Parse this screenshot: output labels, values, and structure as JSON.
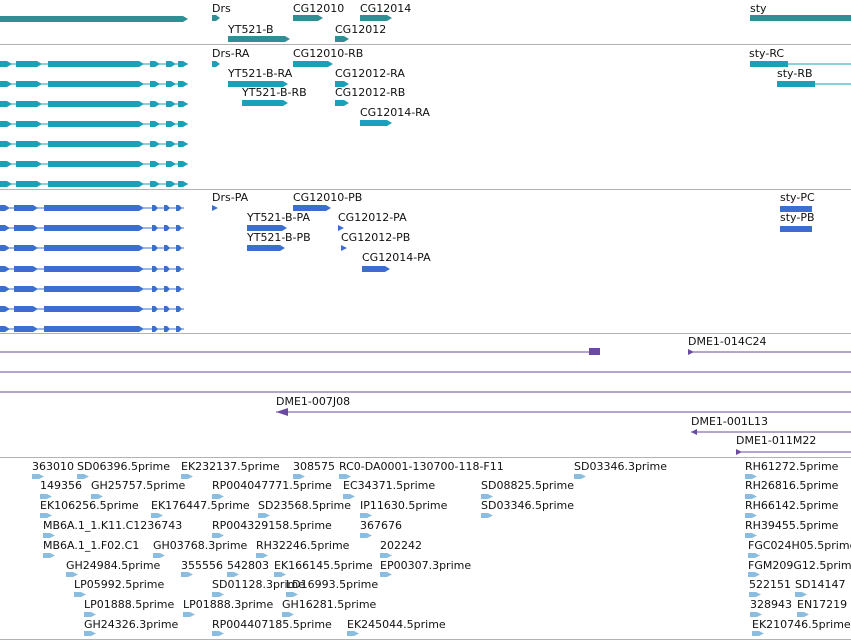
{
  "colors": {
    "gene": "#2f8f95",
    "transcript": "#1aa1b8",
    "protein": "#3a6fcf",
    "clone": "#6a4aa0",
    "est": "#8bbde0"
  },
  "gene_track": {
    "labels": [
      "Drs",
      "YT521-B",
      "CG12010",
      "CG12012",
      "CG12014",
      "sty"
    ]
  },
  "transcript_track": {
    "labels": [
      "Drs-RA",
      "CG12010-RB",
      "YT521-B-RA",
      "CG12012-RA",
      "YT521-B-RB",
      "CG12012-RB",
      "CG12014-RA",
      "sty-RC",
      "sty-RB"
    ]
  },
  "protein_track": {
    "labels": [
      "Drs-PA",
      "CG12010-PB",
      "YT521-B-PA",
      "CG12012-PA",
      "YT521-B-PB",
      "CG12012-PB",
      "CG12014-PA",
      "sty-PC",
      "sty-PB"
    ]
  },
  "clone_track": {
    "labels": [
      "DME1-014C24",
      "DME1-007J08",
      "DME1-001L13",
      "DME1-011M22"
    ]
  },
  "est_track": {
    "labels": [
      "363010",
      "SD06396.5prime",
      "EK232137.5prime",
      "308575",
      "RC0-DA0001-130700-118-F11",
      "SD03346.3prime",
      "RH61272.5prime",
      "149356",
      "GH25757.5prime",
      "RP004047771.5prime",
      "EC34371.5prime",
      "SD08825.5prime",
      "RH26816.5prime",
      "EK106256.5prime",
      "EK176447.5prime",
      "SD23568.5prime",
      "IP11630.5prime",
      "SD03346.5prime",
      "RH66142.5prime",
      "MB6A.1_1.K11.C1236743",
      "RP004329158.5prime",
      "367676",
      "RH39455.5prime",
      "MB6A.1_1.F02.C1",
      "GH03768.3prime",
      "RH32246.5prime",
      "202242",
      "FGC024H05.5prime",
      "GH24984.5prime",
      "355556",
      "542803",
      "EK166145.5prime",
      "EP00307.3prime",
      "FGM209G12.5prime",
      "LP05992.5prime",
      "SD01128.3prime",
      "LD16993.5prime",
      "522151",
      "SD14147",
      "LP01888.5prime",
      "LP01888.3prime",
      "GH16281.5prime",
      "328943",
      "EN17219",
      "GH24326.3prime",
      "RP004407185.5prime",
      "EK245044.5prime",
      "EK210746.5prime"
    ]
  }
}
